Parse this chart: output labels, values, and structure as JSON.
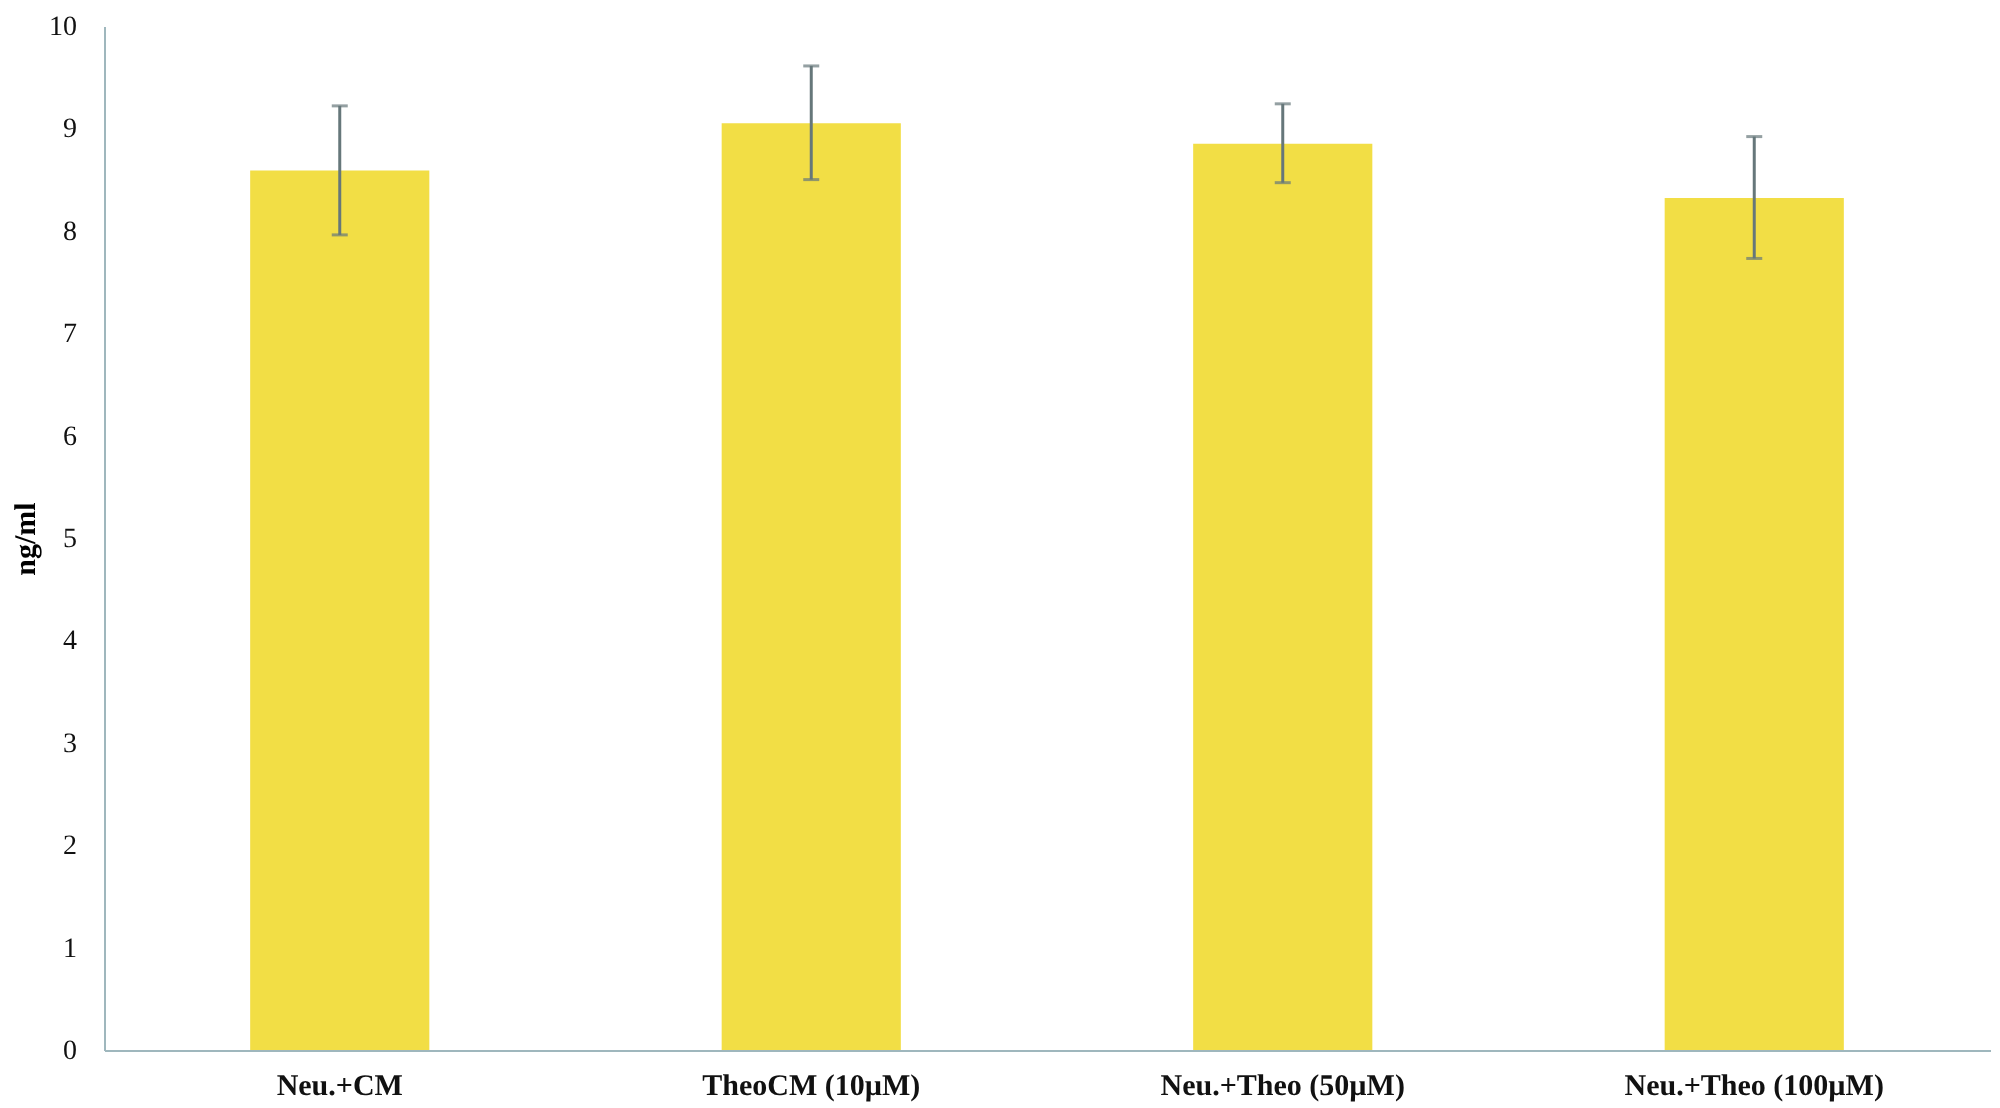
{
  "chart_data": {
    "type": "bar",
    "ylabel": "ng/ml",
    "categories": [
      "Neu.+CM",
      "TheoCM (10µM)",
      "Neu.+Theo (50µM)",
      "Neu.+Theo (100µM)"
    ],
    "values": [
      8.59,
      9.05,
      8.85,
      8.32
    ],
    "errors": [
      [
        7.96,
        9.22
      ],
      [
        8.5,
        9.61
      ],
      [
        8.47,
        9.24
      ],
      [
        7.73,
        8.92
      ]
    ],
    "color": "#f2de45",
    "ylim": [
      0,
      10
    ],
    "yticks": [
      0,
      1,
      2,
      3,
      4,
      5,
      6,
      7,
      8,
      9,
      10
    ],
    "grid": false
  }
}
